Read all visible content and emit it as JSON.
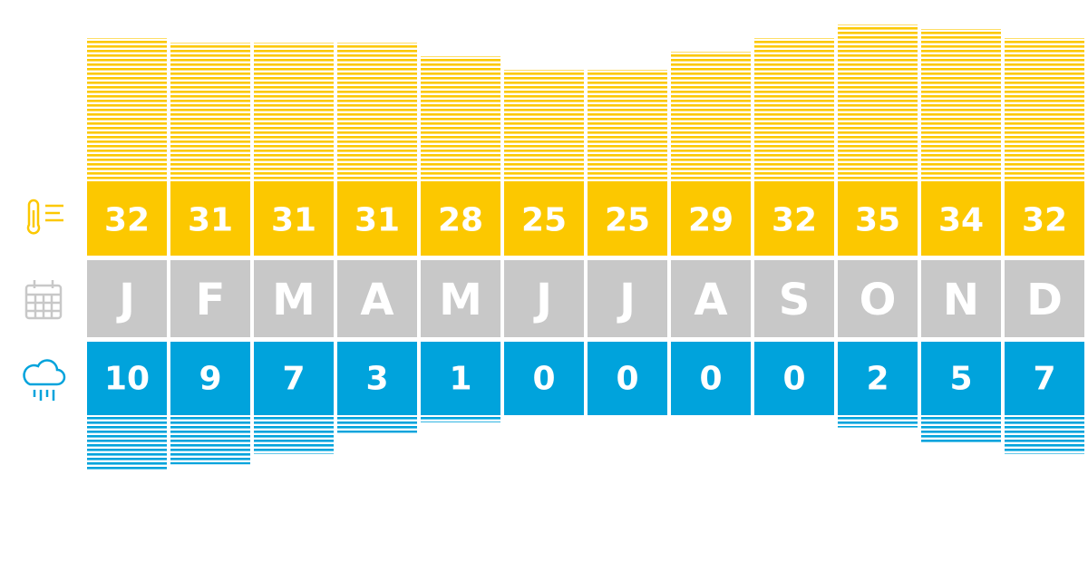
{
  "chart_data": {
    "type": "bar",
    "categories": [
      "J",
      "F",
      "M",
      "A",
      "M",
      "J",
      "J",
      "A",
      "S",
      "O",
      "N",
      "D"
    ],
    "category_color": "#c8c8c8",
    "temperature": {
      "color": "#fcc800",
      "values": [
        32,
        31,
        31,
        31,
        28,
        25,
        25,
        29,
        32,
        35,
        34,
        32
      ]
    },
    "rainfall": {
      "color": "#00a3dc",
      "values": [
        10,
        9,
        7,
        3,
        1,
        0,
        0,
        0,
        0,
        2,
        5,
        7
      ]
    }
  }
}
